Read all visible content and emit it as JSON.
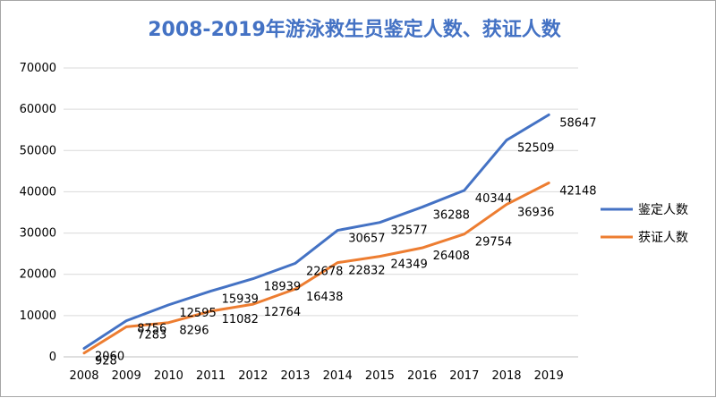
{
  "chart_data": {
    "type": "line",
    "title": "2008-2019年游泳救生员鉴定人数、获证人数",
    "xlabel": "",
    "ylabel": "",
    "x": [
      "2008",
      "2009",
      "2010",
      "2011",
      "2012",
      "2013",
      "2014",
      "2015",
      "2016",
      "2017",
      "2018",
      "2019"
    ],
    "ylim": [
      0,
      70000
    ],
    "yticks": [
      0,
      10000,
      20000,
      30000,
      40000,
      50000,
      60000,
      70000
    ],
    "grid": true,
    "legend": "right",
    "series": [
      {
        "name": "鉴定人数",
        "color": "#4472c4",
        "values": [
          2060,
          8756,
          12595,
          15939,
          18939,
          22678,
          30657,
          32577,
          36288,
          40344,
          52509,
          58647
        ]
      },
      {
        "name": "获证人数",
        "color": "#ed7d31",
        "values": [
          928,
          7283,
          8296,
          11082,
          12764,
          16438,
          22832,
          24349,
          26408,
          29754,
          36936,
          42148
        ]
      }
    ]
  }
}
